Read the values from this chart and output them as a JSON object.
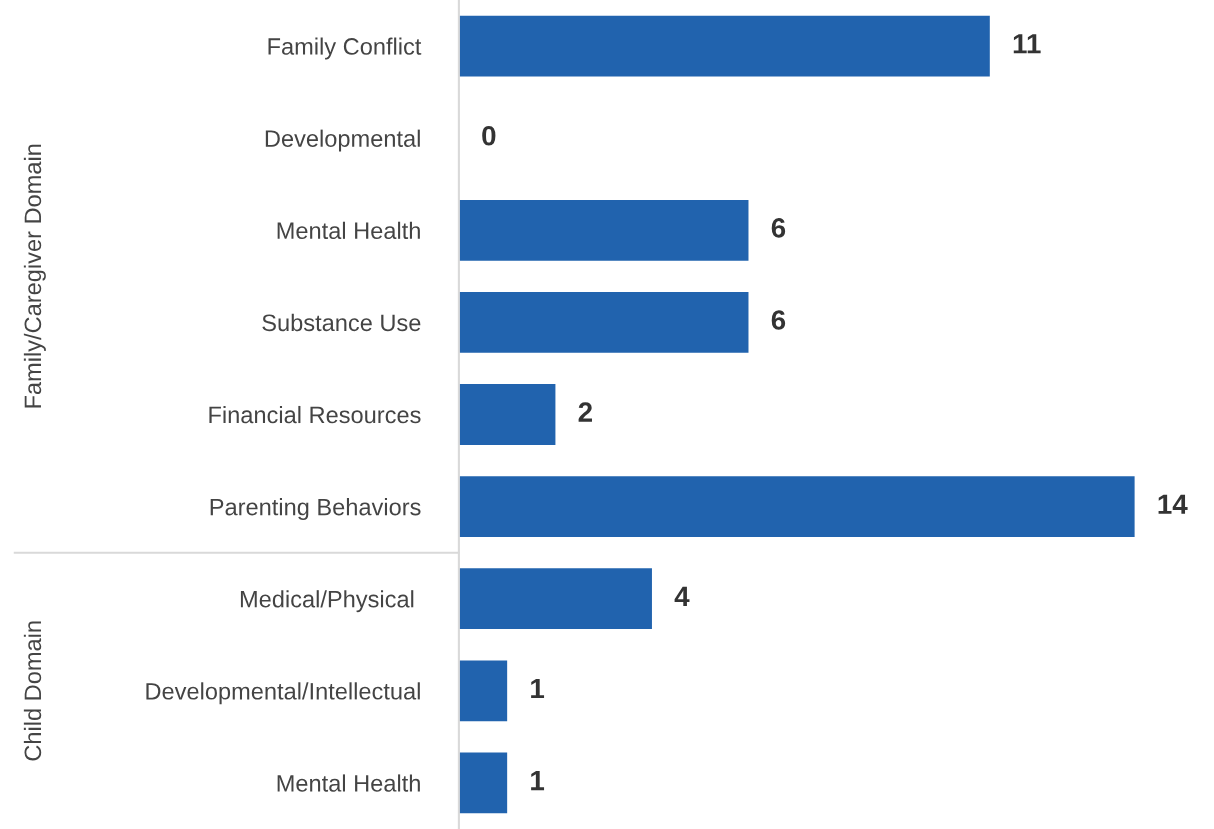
{
  "chart_data": {
    "type": "bar",
    "orientation": "horizontal",
    "categories": [
      "Family Conflict",
      "Developmental",
      "Mental Health",
      "Substance Use",
      "Financial Resources",
      "Parenting Behaviors",
      "Medical/Physical ",
      "Developmental/Intellectual",
      "Mental Health"
    ],
    "values": [
      11,
      0,
      6,
      6,
      2,
      14,
      4,
      1,
      1
    ],
    "color": "#2163ae",
    "data_labels": true,
    "tick_labels": "y",
    "grid": false,
    "annotations": [
      "Family/Caregiver Domain",
      "Child Domain"
    ]
  }
}
